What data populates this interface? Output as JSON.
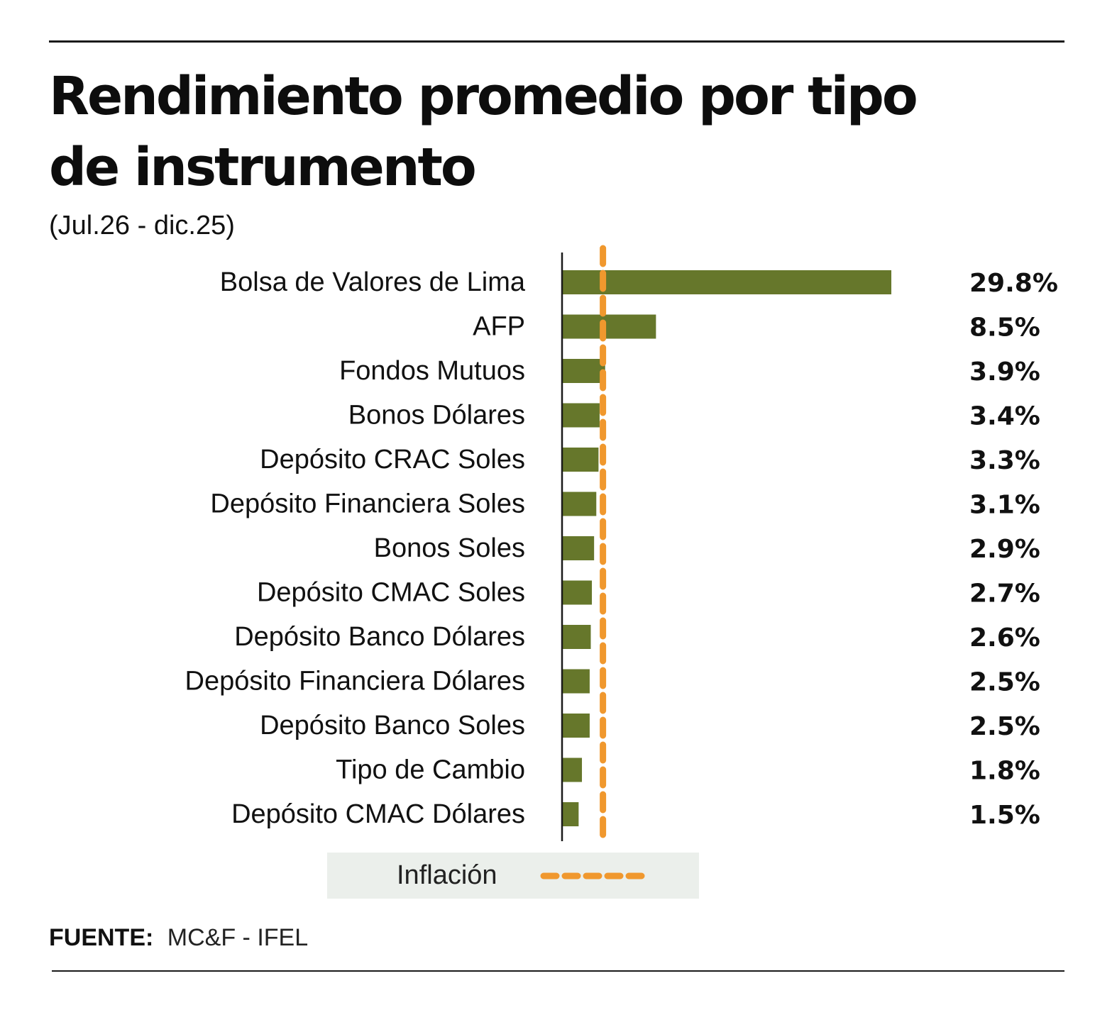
{
  "title": "Rendimiento promedio por tipo de instrumento",
  "subtitle": "(Jul.26 - dic.25)",
  "legend": {
    "label": "Inflación",
    "color": "#f0982e"
  },
  "source": {
    "label": "FUENTE:",
    "value": "MC&F - IFEL"
  },
  "colors": {
    "bar": "#66772b",
    "inflation": "#f0982e",
    "rule": "#1a1a1a"
  },
  "chart_data": {
    "type": "bar",
    "orientation": "horizontal",
    "categories": [
      "Bolsa de Valores de Lima",
      "AFP",
      "Fondos Mutuos",
      "Bonos Dólares",
      "Depósito CRAC Soles",
      "Depósito Financiera Soles",
      "Bonos Soles",
      "Depósito CMAC Soles",
      "Depósito Banco Dólares",
      "Depósito Financiera Dólares",
      "Depósito Banco Soles",
      "Tipo de Cambio",
      "Depósito CMAC Dólares"
    ],
    "values": [
      29.8,
      8.5,
      3.9,
      3.4,
      3.3,
      3.1,
      2.9,
      2.7,
      2.6,
      2.5,
      2.5,
      1.8,
      1.5
    ],
    "value_labels": [
      "29.8%",
      "8.5%",
      "3.9%",
      "3.4%",
      "3.3%",
      "3.1%",
      "2.9%",
      "2.7%",
      "2.6%",
      "2.5%",
      "2.5%",
      "1.8%",
      "1.5%"
    ],
    "inflation_reference": 3.7,
    "xlim": [
      0,
      29.8
    ],
    "grid": false
  }
}
